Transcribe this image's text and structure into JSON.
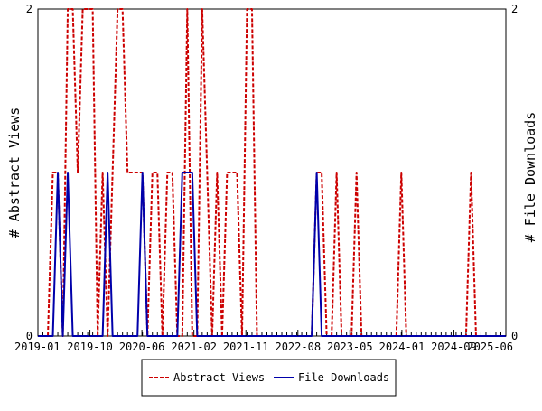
{
  "chart_data": {
    "type": "line",
    "x_ticks": [
      "2019-01",
      "2019-10",
      "2020-06",
      "2021-02",
      "2021-11",
      "2022-08",
      "2023-05",
      "2024-01",
      "2024-09",
      "2025-06"
    ],
    "y_left": {
      "label": "# Abstract Views",
      "ticks": [
        "0",
        "2"
      ],
      "ylim": [
        0,
        2
      ]
    },
    "y_right": {
      "label": "# File Downloads",
      "ticks": [
        "0",
        "2"
      ],
      "ylim": [
        0,
        2
      ]
    },
    "grid": false,
    "legend_position": "bottom-center",
    "series": [
      {
        "name": "Abstract Views",
        "axis": "left",
        "color": "#cc0000",
        "style": "dashed",
        "values": [
          0,
          0,
          0,
          1,
          1,
          0,
          2,
          2,
          1,
          2,
          2,
          2,
          0,
          1,
          0,
          1,
          2,
          2,
          1,
          1,
          1,
          1,
          0,
          1,
          1,
          0,
          1,
          1,
          0,
          0,
          2,
          0,
          0,
          2,
          1,
          0,
          1,
          0,
          1,
          1,
          1,
          0,
          2,
          2,
          0,
          0,
          0,
          0,
          0,
          0,
          0,
          0,
          0,
          0,
          0,
          0,
          1,
          1,
          0,
          0,
          1,
          0,
          0,
          0,
          1,
          0,
          0,
          0,
          0,
          0,
          0,
          0,
          0,
          1,
          0,
          0,
          0,
          0,
          0,
          0,
          0,
          0,
          0,
          0,
          0,
          0,
          0,
          1,
          0,
          0,
          0,
          0,
          0,
          0,
          0
        ]
      },
      {
        "name": "File Downloads",
        "axis": "right",
        "color": "#0000aa",
        "style": "solid",
        "values": [
          0,
          0,
          0,
          0,
          1,
          0,
          1,
          0,
          0,
          0,
          0,
          0,
          0,
          0,
          1,
          0,
          0,
          0,
          0,
          0,
          0,
          1,
          0,
          0,
          0,
          0,
          0,
          0,
          0,
          1,
          1,
          1,
          0,
          0,
          0,
          0,
          0,
          0,
          0,
          0,
          0,
          0,
          0,
          0,
          0,
          0,
          0,
          0,
          0,
          0,
          0,
          0,
          0,
          0,
          0,
          0,
          1,
          0,
          0,
          0,
          0,
          0,
          0,
          0,
          0,
          0,
          0,
          0,
          0,
          0,
          0,
          0,
          0,
          0,
          0,
          0,
          0,
          0,
          0,
          0,
          0,
          0,
          0,
          0,
          0,
          0,
          0,
          0,
          0,
          0,
          0,
          0,
          0,
          0,
          0
        ]
      }
    ]
  }
}
